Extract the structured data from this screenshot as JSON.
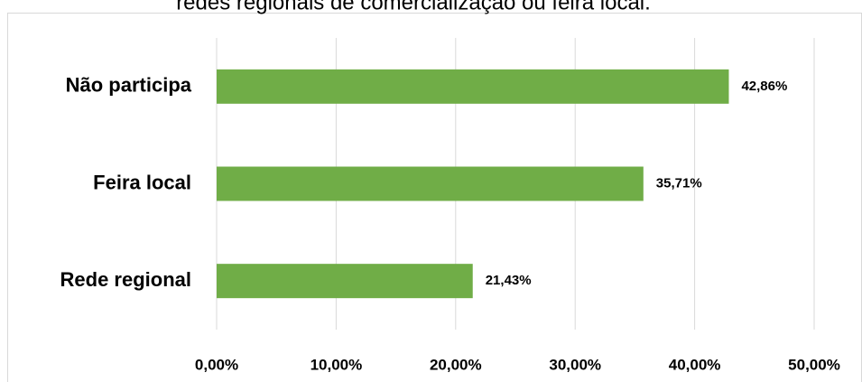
{
  "chart_data": {
    "type": "bar",
    "orientation": "horizontal",
    "title": "redes regionais de comercialização ou feira local.",
    "categories": [
      "Não participa",
      "Feira local",
      "Rede regional"
    ],
    "values": [
      42.86,
      35.71,
      21.43
    ],
    "value_labels": [
      "42,86%",
      "35,71%",
      "21,43%"
    ],
    "color": "#70ad47",
    "xlim": [
      0,
      50
    ],
    "xticks": [
      {
        "value": 0,
        "label": "0,00%"
      },
      {
        "value": 10,
        "label": "10,00%"
      },
      {
        "value": 20,
        "label": "20,00%"
      },
      {
        "value": 30,
        "label": "30,00%"
      },
      {
        "value": 40,
        "label": "40,00%"
      },
      {
        "value": 50,
        "label": "50,00%"
      }
    ],
    "grid": true
  }
}
